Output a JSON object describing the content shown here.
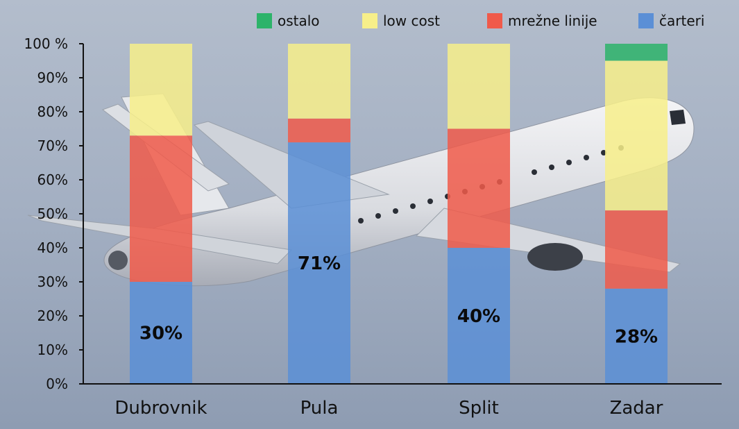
{
  "chart_data": {
    "type": "bar",
    "stacked": true,
    "categories": [
      "Dubrovnik",
      "Pula",
      "Split",
      "Zadar"
    ],
    "series": [
      {
        "name": "čarteri",
        "color": "#5b8fd6",
        "values": [
          30,
          71,
          40,
          28
        ]
      },
      {
        "name": "mrežne linije",
        "color": "#f05a4a",
        "values": [
          43,
          7,
          35,
          23
        ]
      },
      {
        "name": "low cost",
        "color": "#f7ef8a",
        "values": [
          27,
          22,
          25,
          44
        ]
      },
      {
        "name": "ostalo",
        "color": "#2db36a",
        "values": [
          0,
          0,
          0,
          5
        ]
      }
    ],
    "data_labels": [
      "30%",
      "71%",
      "40%",
      "28%"
    ],
    "y_ticks": [
      "0%",
      "10%",
      "20%",
      "30%",
      "40%",
      "50%",
      "60%",
      "70%",
      "80%",
      "90%",
      "100 %"
    ],
    "ylim": [
      0,
      100
    ],
    "legend_order": [
      "ostalo",
      "low cost",
      "mrežne linije",
      "čarteri"
    ],
    "legend_position": "top-right",
    "grid": false,
    "background": "airplane-photo"
  }
}
